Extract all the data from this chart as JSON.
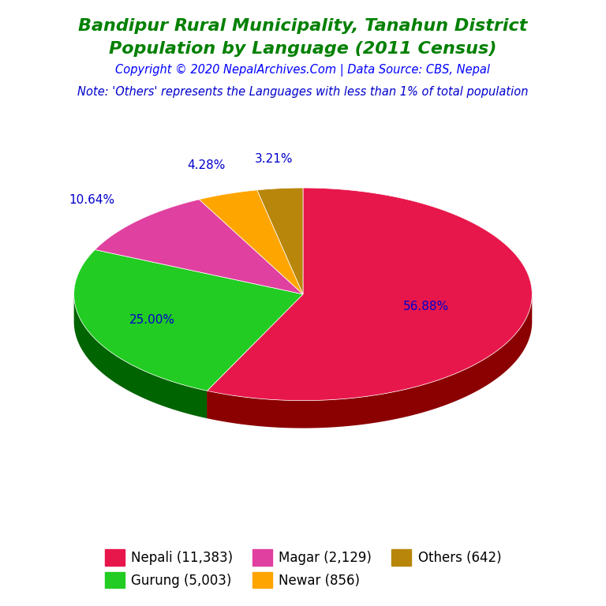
{
  "title_line1": "Bandipur Rural Municipality, Tanahun District",
  "title_line2": "Population by Language (2011 Census)",
  "title_color": "#008000",
  "copyright_text": "Copyright © 2020 NepalArchives.Com | Data Source: CBS, Nepal",
  "copyright_color": "#0000FF",
  "note_text": "Note: 'Others' represents the Languages with less than 1% of total population",
  "note_color": "#0000CD",
  "values": [
    56.88,
    25.0,
    10.64,
    4.28,
    3.21
  ],
  "colors": [
    "#E8174B",
    "#22CC22",
    "#E040A0",
    "#FFA500",
    "#B8860B"
  ],
  "shadow_colors": [
    "#8B0000",
    "#006400",
    "#7B0040",
    "#B87000",
    "#7B5B00"
  ],
  "startangle": 90,
  "pct_labels": [
    "56.88%",
    "25.00%",
    "10.64%",
    "4.28%",
    "3.21%"
  ],
  "pct_color": "#0000CD",
  "legend_labels": [
    "Nepali (11,383)",
    "Gurung (5,003)",
    "Magar (2,129)",
    "Newar (856)",
    "Others (642)"
  ],
  "legend_colors": [
    "#E8174B",
    "#22CC22",
    "#E040A0",
    "#FFA500",
    "#B8860B"
  ],
  "background_color": "#FFFFFF"
}
